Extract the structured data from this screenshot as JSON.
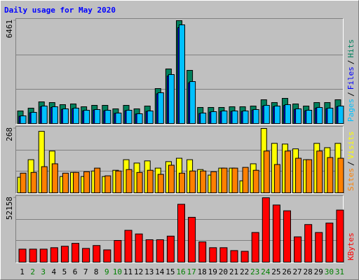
{
  "chart_data": [
    {
      "type": "bar",
      "title": "Daily usage for May 2020",
      "categories": [
        "1",
        "2",
        "3",
        "4",
        "5",
        "6",
        "7",
        "8",
        "9",
        "10",
        "11",
        "12",
        "13",
        "14",
        "15",
        "16",
        "17",
        "18",
        "19",
        "20",
        "21",
        "22",
        "23",
        "24",
        "25",
        "26",
        "27",
        "28",
        "29",
        "30",
        "31"
      ],
      "category_colors": [
        "#000000",
        "#008000",
        "#008000",
        "#000000",
        "#000000",
        "#000000",
        "#000000",
        "#000000",
        "#008000",
        "#008000",
        "#000000",
        "#000000",
        "#000000",
        "#000000",
        "#000000",
        "#008000",
        "#008000",
        "#000000",
        "#000000",
        "#000000",
        "#000000",
        "#000000",
        "#008000",
        "#008000",
        "#000000",
        "#000000",
        "#000000",
        "#000000",
        "#000000",
        "#008000",
        "#008000"
      ],
      "ylim": [
        0,
        6461
      ],
      "yticks": [
        6461
      ],
      "grid": true,
      "legend_separator": "/",
      "series": [
        {
          "name": "Hits",
          "color": "#00805c",
          "values": [
            791,
            967,
            1362,
            1318,
            1187,
            1231,
            1055,
            1143,
            1143,
            923,
            1143,
            923,
            1099,
            2197,
            3428,
            6461,
            3340,
            1011,
            1011,
            1011,
            1055,
            1055,
            1099,
            1494,
            1318,
            1582,
            1231,
            1099,
            1318,
            1318,
            1494
          ]
        },
        {
          "name": "Files",
          "color": "#0000ff",
          "values": [
            460,
            680,
            1060,
            1010,
            890,
            930,
            800,
            850,
            800,
            640,
            800,
            600,
            760,
            1870,
            2990,
            6020,
            2560,
            630,
            720,
            760,
            760,
            760,
            850,
            1100,
            1060,
            1140,
            890,
            800,
            970,
            930,
            1060
          ]
        },
        {
          "name": "Pages",
          "color": "#00c0ff",
          "values": [
            483,
            703,
            1099,
            1055,
            923,
            967,
            835,
            879,
            835,
            659,
            835,
            615,
            791,
            1934,
            3077,
            6197,
            2637,
            659,
            747,
            791,
            791,
            791,
            879,
            1143,
            1099,
            1187,
            923,
            835,
            1011,
            967,
            1099
          ]
        }
      ]
    },
    {
      "type": "bar",
      "ylim": [
        0,
        268
      ],
      "yticks": [
        268
      ],
      "grid": true,
      "legend_separator": "/",
      "series": [
        {
          "name": "Visits",
          "color": "#ffff00",
          "values": [
            65,
            138,
            256,
            174,
            68,
            85,
            68,
            91,
            68,
            94,
            138,
            124,
            133,
            103,
            130,
            144,
            138,
            97,
            74,
            103,
            103,
            50,
            121,
            268,
            206,
            203,
            183,
            138,
            206,
            188,
            206
          ]
        },
        {
          "name": "Sites",
          "color": "#ff8000",
          "values": [
            82,
            85,
            109,
            121,
            82,
            85,
            88,
            103,
            71,
            91,
            97,
            85,
            94,
            77,
            115,
            82,
            91,
            91,
            88,
            103,
            103,
            106,
            94,
            174,
            118,
            174,
            144,
            138,
            174,
            147,
            144
          ]
        }
      ]
    },
    {
      "type": "bar",
      "ylim": [
        0,
        52158
      ],
      "yticks": [
        52158
      ],
      "grid": true,
      "legend_separator": "/",
      "series": [
        {
          "name": "KBytes",
          "color": "#ff0000",
          "values": [
            10548,
            10548,
            10548,
            11720,
            12892,
            15236,
            11134,
            13478,
            9962,
            17580,
            25784,
            22854,
            18166,
            18166,
            21096,
            46880,
            36332,
            16408,
            11720,
            11720,
            9376,
            8790,
            24026,
            52158,
            46294,
            41606,
            20510,
            30472,
            24026,
            31644,
            42192
          ]
        }
      ]
    }
  ]
}
